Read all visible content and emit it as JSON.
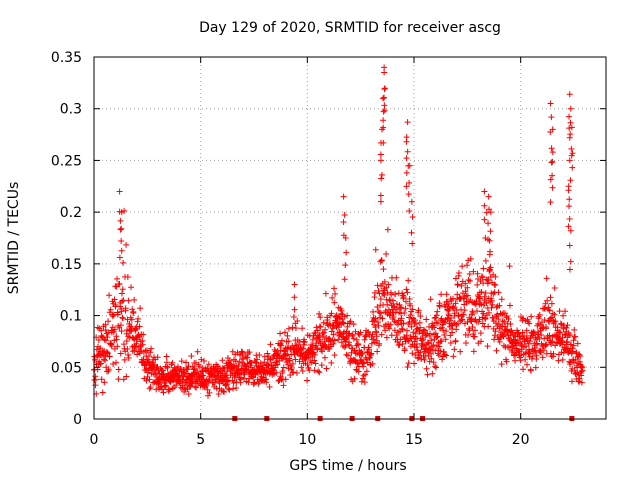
{
  "chart_data": {
    "type": "scatter",
    "title": "Day 129 of 2020, SRMTID for receiver ascg",
    "xlabel": "GPS time / hours",
    "ylabel": "SRMTID / TECUs",
    "xlim": [
      0,
      24
    ],
    "ylim": [
      0,
      0.35
    ],
    "x_ticks": [
      0,
      5,
      10,
      15,
      20
    ],
    "x_tick_labels": [
      "0",
      "5",
      "10",
      "15",
      "20"
    ],
    "y_ticks": [
      0,
      0.05,
      0.1,
      0.15,
      0.2,
      0.25,
      0.3,
      0.35
    ],
    "y_tick_labels": [
      "0",
      "0.05",
      "0.1",
      "0.15",
      "0.2",
      "0.25",
      "0.3",
      "0.35"
    ],
    "grid": true,
    "marker": "plus",
    "color": "#ff0000",
    "baseline_marker_color": "#dd0000",
    "series": [
      {
        "name": "SRMTID",
        "envelope_hours": [
          0,
          0.5,
          1,
          1.5,
          2,
          2.5,
          3,
          4,
          5,
          6,
          7,
          8,
          9,
          9.5,
          10,
          10.5,
          11,
          11.5,
          12,
          12.5,
          13,
          13.5,
          14,
          14.5,
          15,
          15.5,
          16,
          16.5,
          17,
          17.5,
          18,
          18.5,
          19,
          19.5,
          20,
          20.5,
          21,
          21.5,
          22,
          22.5,
          22.9
        ],
        "envelope_median": [
          0.05,
          0.07,
          0.09,
          0.1,
          0.08,
          0.05,
          0.04,
          0.04,
          0.04,
          0.04,
          0.05,
          0.045,
          0.06,
          0.07,
          0.06,
          0.07,
          0.08,
          0.1,
          0.07,
          0.06,
          0.07,
          0.12,
          0.1,
          0.09,
          0.08,
          0.07,
          0.08,
          0.09,
          0.1,
          0.11,
          0.11,
          0.12,
          0.09,
          0.08,
          0.075,
          0.07,
          0.08,
          0.09,
          0.07,
          0.06,
          0.04
        ],
        "envelope_spread": [
          0.03,
          0.04,
          0.05,
          0.06,
          0.03,
          0.02,
          0.015,
          0.015,
          0.015,
          0.015,
          0.02,
          0.015,
          0.025,
          0.03,
          0.02,
          0.025,
          0.03,
          0.04,
          0.03,
          0.03,
          0.03,
          0.05,
          0.04,
          0.035,
          0.03,
          0.025,
          0.03,
          0.03,
          0.035,
          0.04,
          0.04,
          0.05,
          0.035,
          0.03,
          0.025,
          0.025,
          0.03,
          0.04,
          0.03,
          0.025,
          0.015
        ],
        "peaks": [
          {
            "x": 1.2,
            "y": 0.22
          },
          {
            "x": 1.3,
            "y": 0.2
          },
          {
            "x": 9.4,
            "y": 0.13
          },
          {
            "x": 11.7,
            "y": 0.215
          },
          {
            "x": 11.8,
            "y": 0.175
          },
          {
            "x": 13.6,
            "y": 0.34
          },
          {
            "x": 13.6,
            "y": 0.335
          },
          {
            "x": 13.55,
            "y": 0.31
          },
          {
            "x": 13.5,
            "y": 0.28
          },
          {
            "x": 13.45,
            "y": 0.25
          },
          {
            "x": 14.7,
            "y": 0.287
          },
          {
            "x": 14.65,
            "y": 0.268
          },
          {
            "x": 14.8,
            "y": 0.245
          },
          {
            "x": 14.9,
            "y": 0.21
          },
          {
            "x": 18.3,
            "y": 0.22
          },
          {
            "x": 18.5,
            "y": 0.215
          },
          {
            "x": 18.6,
            "y": 0.2
          },
          {
            "x": 21.4,
            "y": 0.305
          },
          {
            "x": 21.5,
            "y": 0.28
          },
          {
            "x": 21.45,
            "y": 0.248
          },
          {
            "x": 22.3,
            "y": 0.314
          },
          {
            "x": 22.35,
            "y": 0.3
          },
          {
            "x": 22.4,
            "y": 0.282
          },
          {
            "x": 22.3,
            "y": 0.25
          },
          {
            "x": 22.25,
            "y": 0.225
          },
          {
            "x": 22.35,
            "y": 0.182
          }
        ]
      }
    ],
    "baseline_markers_x": [
      6.6,
      8.1,
      10.6,
      12.1,
      13.3,
      14.9,
      15.4,
      22.4
    ]
  }
}
